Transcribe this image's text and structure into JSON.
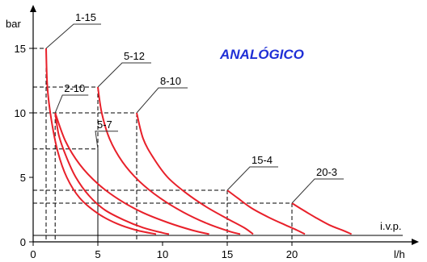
{
  "chart_data": {
    "type": "line",
    "title": "ANALÓGICO",
    "title_color": "#1f2fd6",
    "curve_color": "#e8202a",
    "xlabel": "l/h",
    "ylabel": "bar",
    "baseline_label": "i.v.p.",
    "baseline_y": 0.5,
    "xlim": [
      0,
      27.5
    ],
    "ylim": [
      0,
      17.5
    ],
    "xticks": [
      0,
      5,
      10,
      15,
      20
    ],
    "yticks": [
      0,
      5,
      10,
      15
    ],
    "grid": false,
    "series": [
      {
        "name": "1-15",
        "points": [
          [
            1,
            15
          ],
          [
            1.1,
            12
          ],
          [
            1.4,
            9.5
          ],
          [
            1.9,
            7
          ],
          [
            2.6,
            5
          ],
          [
            3.6,
            3.4
          ],
          [
            5,
            2.2
          ],
          [
            6.5,
            1.4
          ],
          [
            8,
            0.9
          ],
          [
            9.5,
            0.6
          ]
        ],
        "label_anchor": [
          1,
          15
        ]
      },
      {
        "name": "2-10",
        "points": [
          [
            1.7,
            10
          ],
          [
            2,
            8.2
          ],
          [
            2.6,
            6.5
          ],
          [
            3.3,
            5
          ],
          [
            4.3,
            3.6
          ],
          [
            5.5,
            2.5
          ],
          [
            7,
            1.7
          ],
          [
            8.5,
            1.1
          ],
          [
            10,
            0.7
          ],
          [
            10.5,
            0.6
          ]
        ],
        "label_anchor": [
          1.7,
          10
        ]
      },
      {
        "name": "5-7",
        "points": [
          [
            1.7,
            10
          ],
          [
            2.5,
            7.8
          ],
          [
            3.6,
            6
          ],
          [
            5,
            4.5
          ],
          [
            6.6,
            3.3
          ],
          [
            8.4,
            2.3
          ],
          [
            10.4,
            1.5
          ],
          [
            12.3,
            0.9
          ],
          [
            13.6,
            0.6
          ]
        ],
        "label_anchor": [
          5,
          7.2
        ]
      },
      {
        "name": "5-12",
        "points": [
          [
            5,
            12
          ],
          [
            5.3,
            10
          ],
          [
            5.9,
            8
          ],
          [
            6.9,
            6.2
          ],
          [
            8.2,
            4.7
          ],
          [
            9.8,
            3.4
          ],
          [
            11.6,
            2.3
          ],
          [
            13.5,
            1.4
          ],
          [
            15.2,
            0.8
          ],
          [
            16,
            0.6
          ]
        ],
        "label_anchor": [
          5,
          12
        ]
      },
      {
        "name": "8-10",
        "points": [
          [
            8,
            10
          ],
          [
            8.5,
            8
          ],
          [
            9.3,
            6.5
          ],
          [
            10.4,
            5
          ],
          [
            11.8,
            3.8
          ],
          [
            13.4,
            2.7
          ],
          [
            15,
            1.8
          ],
          [
            16.3,
            1.1
          ],
          [
            17,
            0.6
          ]
        ],
        "label_anchor": [
          8,
          10
        ]
      },
      {
        "name": "15-4",
        "points": [
          [
            15,
            4
          ],
          [
            15.8,
            3.4
          ],
          [
            16.9,
            2.6
          ],
          [
            18.2,
            1.9
          ],
          [
            19.5,
            1.3
          ],
          [
            20.4,
            0.9
          ],
          [
            21,
            0.6
          ]
        ],
        "label_anchor": [
          15,
          4
        ]
      },
      {
        "name": "20-3",
        "points": [
          [
            20,
            3
          ],
          [
            20.8,
            2.5
          ],
          [
            21.8,
            1.9
          ],
          [
            22.9,
            1.3
          ],
          [
            23.9,
            0.9
          ],
          [
            24.6,
            0.6
          ]
        ],
        "label_anchor": [
          20,
          3
        ]
      }
    ],
    "reference_lines": [
      {
        "x": 1,
        "y": 15
      },
      {
        "x": 1.7,
        "y": 10
      },
      {
        "x": 5,
        "y": 7.2
      },
      {
        "x": 5,
        "y": 12
      },
      {
        "x": 8,
        "y": 10
      },
      {
        "x": 15,
        "y": 4
      },
      {
        "x": 20,
        "y": 3
      }
    ]
  }
}
